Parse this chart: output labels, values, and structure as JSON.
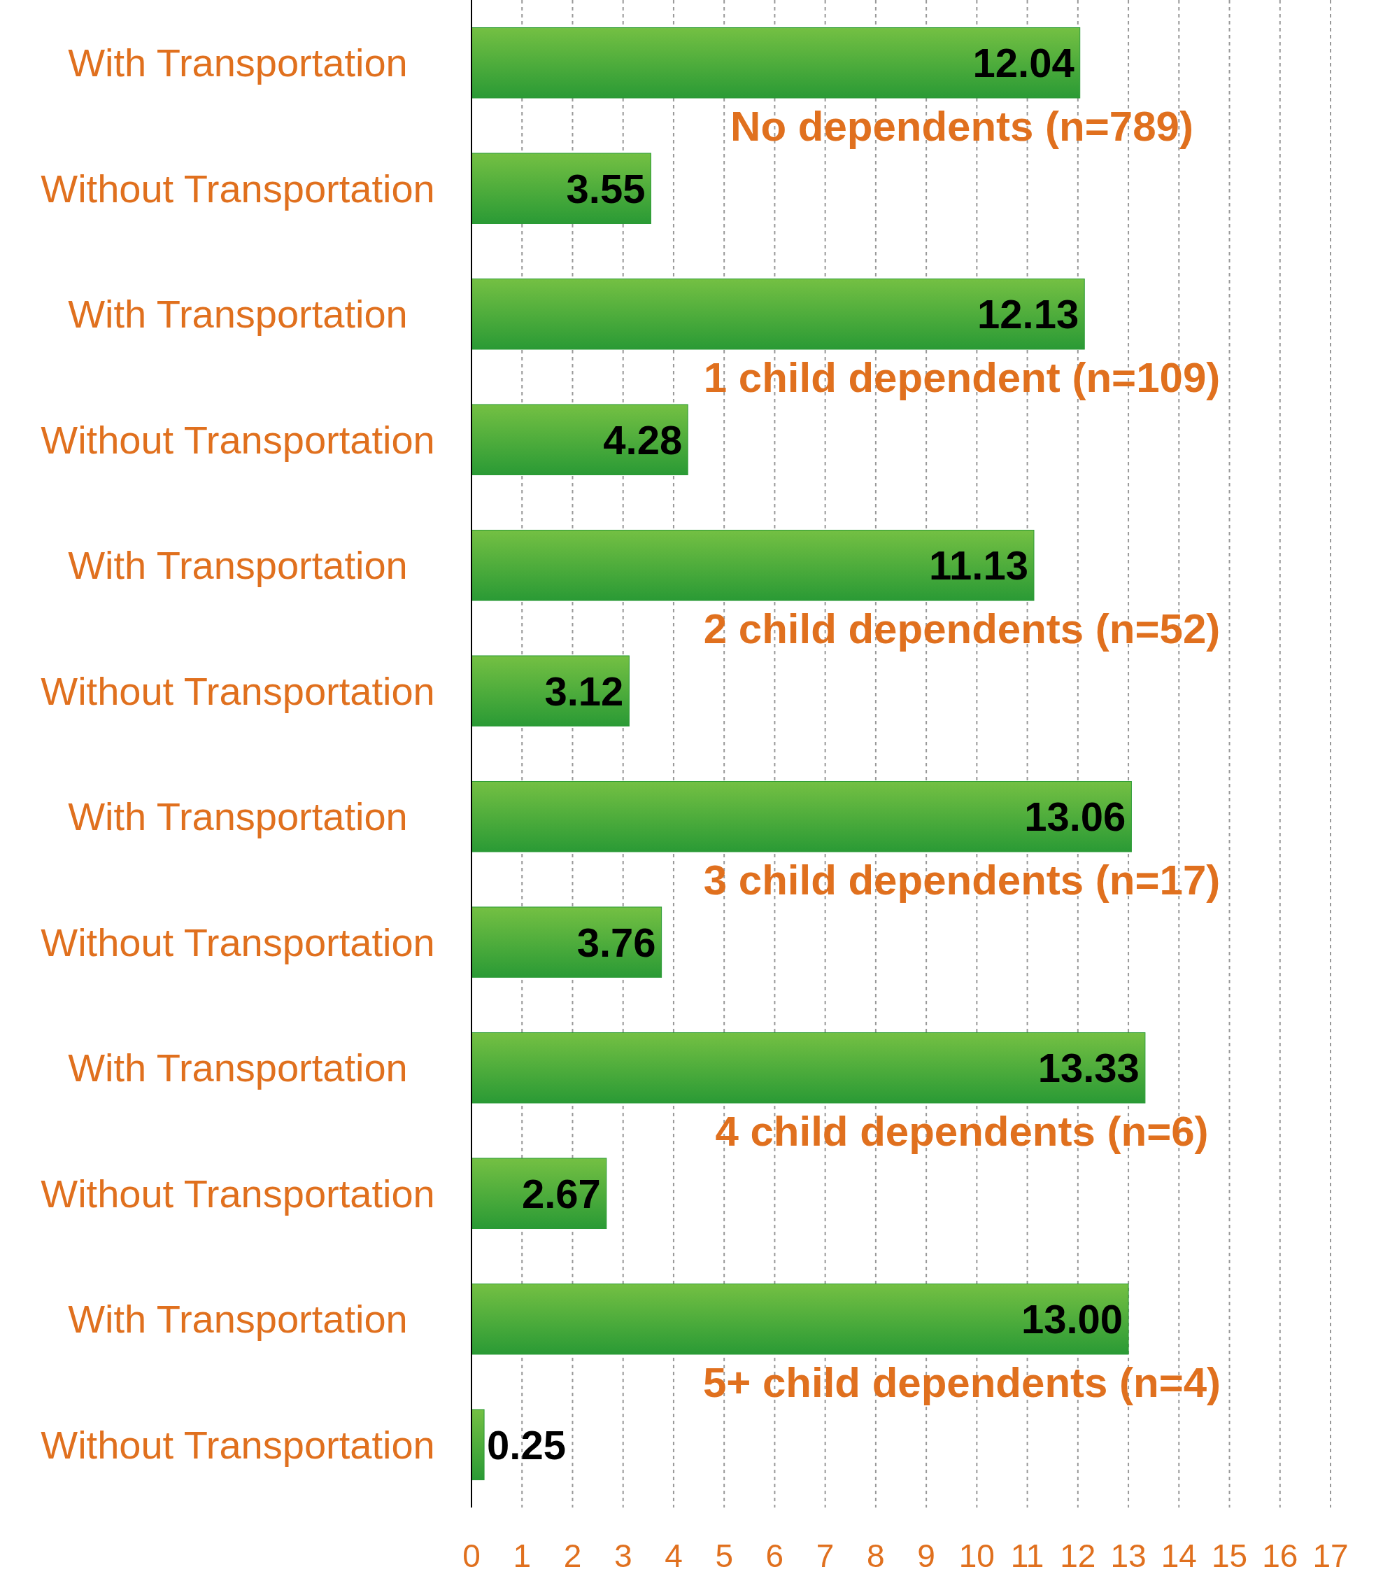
{
  "chart_data": {
    "type": "bar",
    "orientation": "horizontal",
    "categories": [
      "With Transportation",
      "Without Transportation",
      "With Transportation",
      "Without Transportation",
      "With Transportation",
      "Without Transportation",
      "With Transportation",
      "Without Transportation",
      "With Transportation",
      "Without Transportation",
      "With Transportation",
      "Without Transportation"
    ],
    "values": [
      12.04,
      3.55,
      12.13,
      4.28,
      11.13,
      3.12,
      13.06,
      3.76,
      13.33,
      2.67,
      13.0,
      0.25
    ],
    "value_labels": [
      "12.04",
      "3.55",
      "12.13",
      "4.28",
      "11.13",
      "3.12",
      "13.06",
      "3.76",
      "13.33",
      "2.67",
      "13.00",
      "0.25"
    ],
    "color": "#2a9a35",
    "xlim": [
      0,
      17
    ],
    "xticks": [
      0,
      1,
      2,
      3,
      4,
      5,
      6,
      7,
      8,
      9,
      10,
      11,
      12,
      13,
      14,
      15,
      16,
      17
    ],
    "grid": "x",
    "annotations": [
      "No dependents (n=789)",
      "1 child dependent (n=109)",
      "2 child dependents (n=52)",
      "3 child dependents (n=17)",
      "4 child dependents (n=6)",
      "5+ child dependents (n=4)"
    ]
  }
}
